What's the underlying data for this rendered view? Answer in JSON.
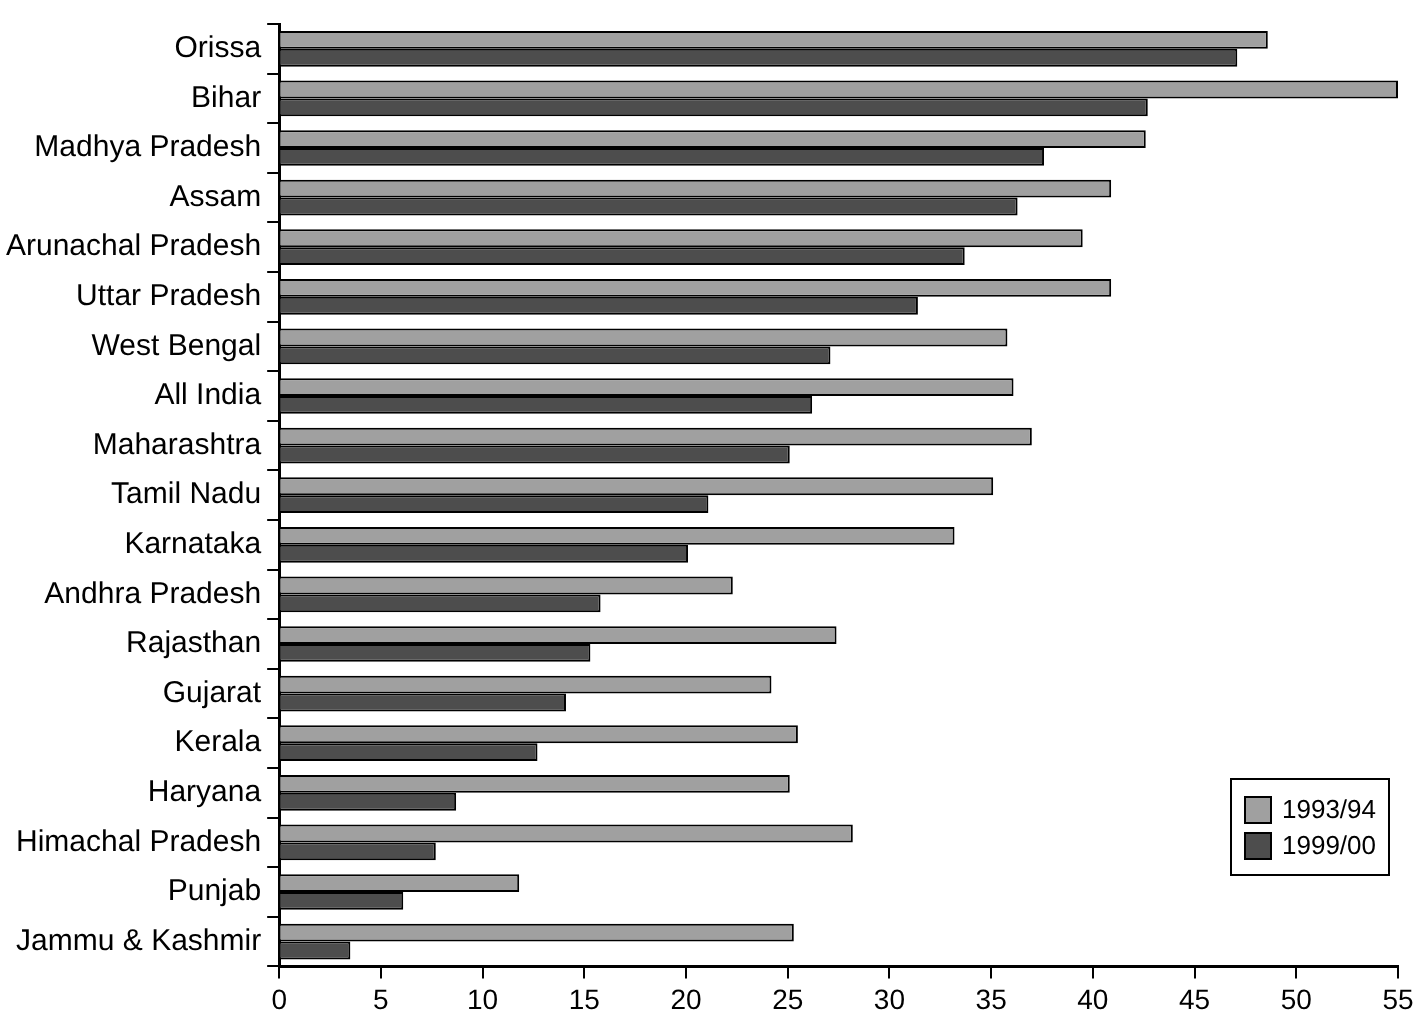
{
  "chart_data": {
    "type": "bar",
    "orientation": "horizontal",
    "categories": [
      "Orissa",
      "Bihar",
      "Madhya Pradesh",
      "Assam",
      "Arunachal Pradesh",
      "Uttar Pradesh",
      "West Bengal",
      "All India",
      "Maharashtra",
      "Tamil Nadu",
      "Karnataka",
      "Andhra Pradesh",
      "Rajasthan",
      "Gujarat",
      "Kerala",
      "Haryana",
      "Himachal Pradesh",
      "Punjab",
      "Jammu & Kashmir"
    ],
    "series": [
      {
        "name": "1993/94",
        "color": "#a0a0a0",
        "values": [
          48.6,
          55.0,
          42.6,
          40.9,
          39.5,
          40.9,
          35.8,
          36.1,
          37.0,
          35.1,
          33.2,
          22.3,
          27.4,
          24.2,
          25.5,
          25.1,
          28.2,
          11.8,
          25.3
        ]
      },
      {
        "name": "1999/00",
        "color": "#4d4d4d",
        "values": [
          47.1,
          42.7,
          37.6,
          36.3,
          33.7,
          31.4,
          27.1,
          26.2,
          25.1,
          21.1,
          20.1,
          15.8,
          15.3,
          14.1,
          12.7,
          8.7,
          7.7,
          6.1,
          3.5
        ]
      }
    ],
    "xlim": [
      0,
      55
    ],
    "xticks": [
      0,
      5,
      10,
      15,
      20,
      25,
      30,
      35,
      40,
      45,
      50,
      55
    ],
    "grid": false,
    "legend": "bottom right"
  }
}
